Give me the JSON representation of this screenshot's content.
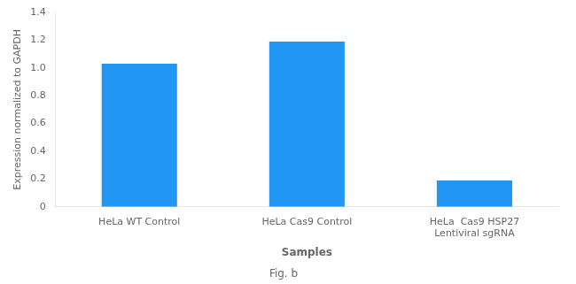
{
  "chart_data": {
    "type": "bar",
    "categories": [
      "HeLa WT Control",
      "HeLa Cas9 Control",
      "HeLa  Cas9 HSP27\nLentiviral sgRNA"
    ],
    "values": [
      1.03,
      1.19,
      0.19
    ],
    "color": "#2196F3",
    "ylabel": "Expression normalized to GAPDH",
    "xlabel": "Samples",
    "annotation": "Fig. b",
    "ylim": [
      0,
      1.4
    ],
    "yticks": [
      0,
      0.2,
      0.4,
      0.6,
      0.8,
      {
        "value": 1.0,
        "label": "1.0"
      },
      1.2,
      1.4
    ],
    "grid": false
  }
}
